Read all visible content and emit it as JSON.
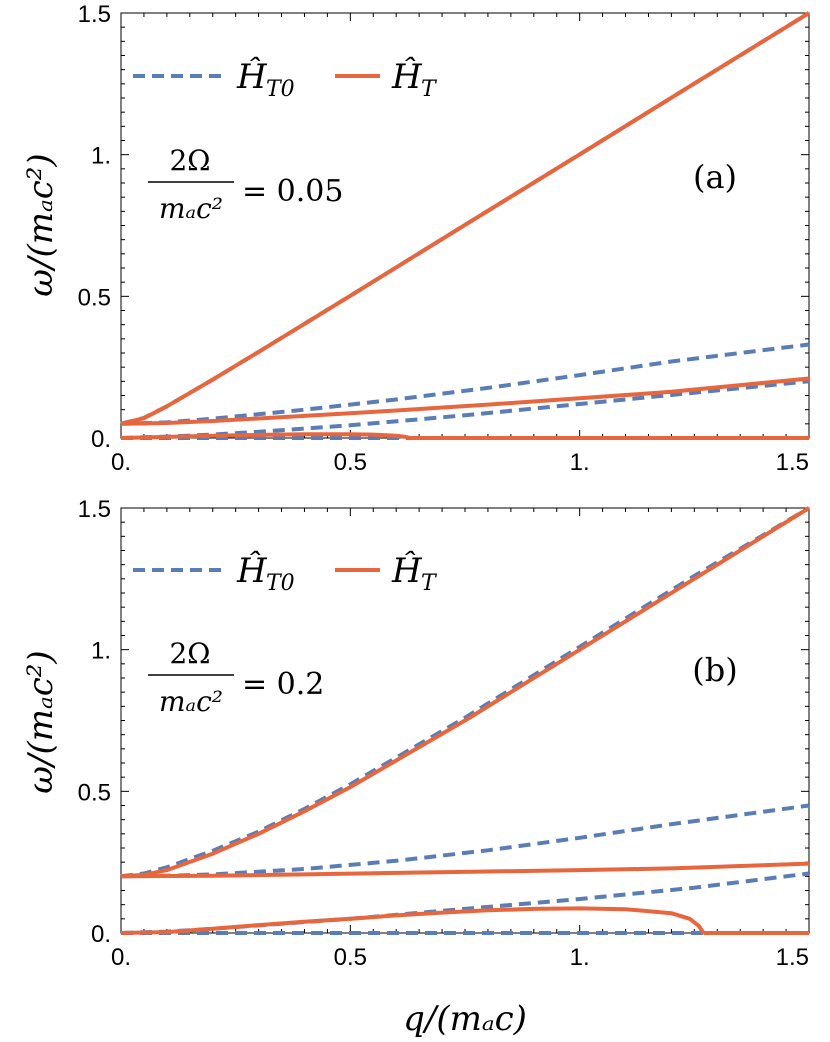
{
  "chart_data": [
    {
      "type": "line",
      "panel_label": "(a)",
      "parameter": {
        "numerator": "2Ω",
        "denominator": "mₐc²",
        "value": "= 0.05"
      },
      "x_ticks": [
        "0.",
        "0.5",
        "1.",
        "1.5"
      ],
      "y_ticks": [
        "0.",
        "0.5",
        "1.",
        "1.5"
      ],
      "xlim": [
        0,
        1.5
      ],
      "ylim": [
        0,
        1.5
      ],
      "legend": {
        "placement": "top-left",
        "entries": [
          {
            "label": "Ĥ",
            "sub": "T0",
            "style": "dashed",
            "color": "#5B7DB5"
          },
          {
            "label": "Ĥ",
            "sub": "T",
            "style": "solid",
            "color": "#E8663D"
          }
        ]
      },
      "series": [
        {
          "name": "Ĥ_T0",
          "style": "dashed",
          "color": "#5B7DB5",
          "x": [
            0,
            0.05,
            0.1,
            0.2,
            0.3,
            0.5,
            0.75,
            1.0,
            1.25,
            1.5
          ],
          "y": [
            0.05,
            0.071,
            0.112,
            0.206,
            0.304,
            0.502,
            0.752,
            1.001,
            1.251,
            1.5
          ]
        },
        {
          "name": "Ĥ_T0",
          "style": "dashed",
          "color": "#5B7DB5",
          "x": [
            0,
            0.1,
            0.2,
            0.4,
            0.6,
            0.8,
            1.0,
            1.2,
            1.5
          ],
          "y": [
            0.05,
            0.055,
            0.068,
            0.1,
            0.136,
            0.177,
            0.222,
            0.27,
            0.33
          ]
        },
        {
          "name": "Ĥ_T0",
          "style": "dashed",
          "color": "#5B7DB5",
          "x": [
            0,
            0.1,
            0.2,
            0.3,
            0.5,
            0.75,
            1.0,
            1.25,
            1.5
          ],
          "y": [
            0.0,
            0.005,
            0.012,
            0.022,
            0.045,
            0.08,
            0.12,
            0.16,
            0.2
          ]
        },
        {
          "name": "Ĥ_T0",
          "style": "dashed",
          "color": "#5B7DB5",
          "x": [
            0,
            1.5
          ],
          "y": [
            0.0,
            0.0
          ]
        },
        {
          "name": "Ĥ_T",
          "style": "solid",
          "color": "#E8663D",
          "x": [
            0,
            0.05,
            0.1,
            0.2,
            0.3,
            0.5,
            0.75,
            1.0,
            1.25,
            1.5
          ],
          "y": [
            0.05,
            0.07,
            0.112,
            0.206,
            0.304,
            0.502,
            0.752,
            1.001,
            1.251,
            1.5
          ]
        },
        {
          "name": "Ĥ_T",
          "style": "solid",
          "color": "#E8663D",
          "x": [
            0,
            0.1,
            0.2,
            0.4,
            0.6,
            0.8,
            1.0,
            1.2,
            1.5
          ],
          "y": [
            0.05,
            0.053,
            0.06,
            0.078,
            0.097,
            0.118,
            0.14,
            0.163,
            0.21
          ]
        },
        {
          "name": "Ĥ_T",
          "style": "solid",
          "color": "#E8663D",
          "x": [
            0,
            0.1,
            0.2,
            0.3,
            0.4,
            0.5,
            0.55,
            0.6,
            0.62,
            0.63
          ],
          "y": [
            0.0,
            0.004,
            0.008,
            0.011,
            0.013,
            0.013,
            0.012,
            0.008,
            0.004,
            0.0
          ]
        },
        {
          "name": "Ĥ_T",
          "style": "solid",
          "color": "#E8663D",
          "x": [
            0.63,
            1.5
          ],
          "y": [
            0.0,
            0.0
          ]
        }
      ]
    },
    {
      "type": "line",
      "panel_label": "(b)",
      "parameter": {
        "numerator": "2Ω",
        "denominator": "mₐc²",
        "value": "= 0.2"
      },
      "x_ticks": [
        "0.",
        "0.5",
        "1.",
        "1.5"
      ],
      "y_ticks": [
        "0.",
        "0.5",
        "1.",
        "1.5"
      ],
      "xlim": [
        0,
        1.5
      ],
      "ylim": [
        0,
        1.5
      ],
      "xlabel": "q/(mₐc)",
      "legend": {
        "placement": "top-left",
        "entries": [
          {
            "label": "Ĥ",
            "sub": "T0",
            "style": "dashed",
            "color": "#5B7DB5"
          },
          {
            "label": "Ĥ",
            "sub": "T",
            "style": "solid",
            "color": "#E8663D"
          }
        ]
      },
      "series": [
        {
          "name": "Ĥ_T0",
          "style": "dashed",
          "color": "#5B7DB5",
          "x": [
            0,
            0.05,
            0.1,
            0.2,
            0.3,
            0.4,
            0.5,
            0.75,
            1.0,
            1.25,
            1.5
          ],
          "y": [
            0.2,
            0.21,
            0.232,
            0.29,
            0.358,
            0.438,
            0.525,
            0.76,
            1.01,
            1.26,
            1.5
          ]
        },
        {
          "name": "Ĥ_T0",
          "style": "dashed",
          "color": "#5B7DB5",
          "x": [
            0,
            0.1,
            0.2,
            0.4,
            0.6,
            0.8,
            1.0,
            1.2,
            1.5
          ],
          "y": [
            0.2,
            0.202,
            0.207,
            0.226,
            0.255,
            0.292,
            0.336,
            0.384,
            0.45
          ]
        },
        {
          "name": "Ĥ_T0",
          "style": "dashed",
          "color": "#5B7DB5",
          "x": [
            0,
            0.1,
            0.2,
            0.3,
            0.5,
            0.75,
            1.0,
            1.25,
            1.5
          ],
          "y": [
            0.0,
            0.005,
            0.015,
            0.027,
            0.05,
            0.085,
            0.12,
            0.16,
            0.21
          ]
        },
        {
          "name": "Ĥ_T0",
          "style": "dashed",
          "color": "#5B7DB5",
          "x": [
            0,
            1.5
          ],
          "y": [
            0.0,
            0.0
          ]
        },
        {
          "name": "Ĥ_T",
          "style": "solid",
          "color": "#E8663D",
          "x": [
            0,
            0.05,
            0.1,
            0.2,
            0.3,
            0.4,
            0.5,
            0.75,
            1.0,
            1.25,
            1.5
          ],
          "y": [
            0.2,
            0.205,
            0.222,
            0.28,
            0.35,
            0.43,
            0.515,
            0.75,
            1.0,
            1.25,
            1.5
          ]
        },
        {
          "name": "Ĥ_T",
          "style": "solid",
          "color": "#E8663D",
          "x": [
            0,
            0.2,
            0.4,
            0.6,
            0.8,
            1.0,
            1.2,
            1.5
          ],
          "y": [
            0.2,
            0.202,
            0.207,
            0.212,
            0.217,
            0.222,
            0.228,
            0.245
          ]
        },
        {
          "name": "Ĥ_T",
          "style": "solid",
          "color": "#E8663D",
          "x": [
            0,
            0.1,
            0.2,
            0.3,
            0.4,
            0.5,
            0.6,
            0.7,
            0.8,
            0.9,
            1.0,
            1.1,
            1.2,
            1.24,
            1.26,
            1.27
          ],
          "y": [
            0.0,
            0.003,
            0.015,
            0.028,
            0.04,
            0.05,
            0.062,
            0.072,
            0.08,
            0.085,
            0.087,
            0.084,
            0.07,
            0.05,
            0.025,
            0.0
          ]
        },
        {
          "name": "Ĥ_T",
          "style": "solid",
          "color": "#E8663D",
          "x": [
            1.27,
            1.5
          ],
          "y": [
            0.0,
            0.0
          ]
        }
      ]
    }
  ],
  "ylabel": "ω/(mₐc²)",
  "xlabel": "q/(mₐc)"
}
